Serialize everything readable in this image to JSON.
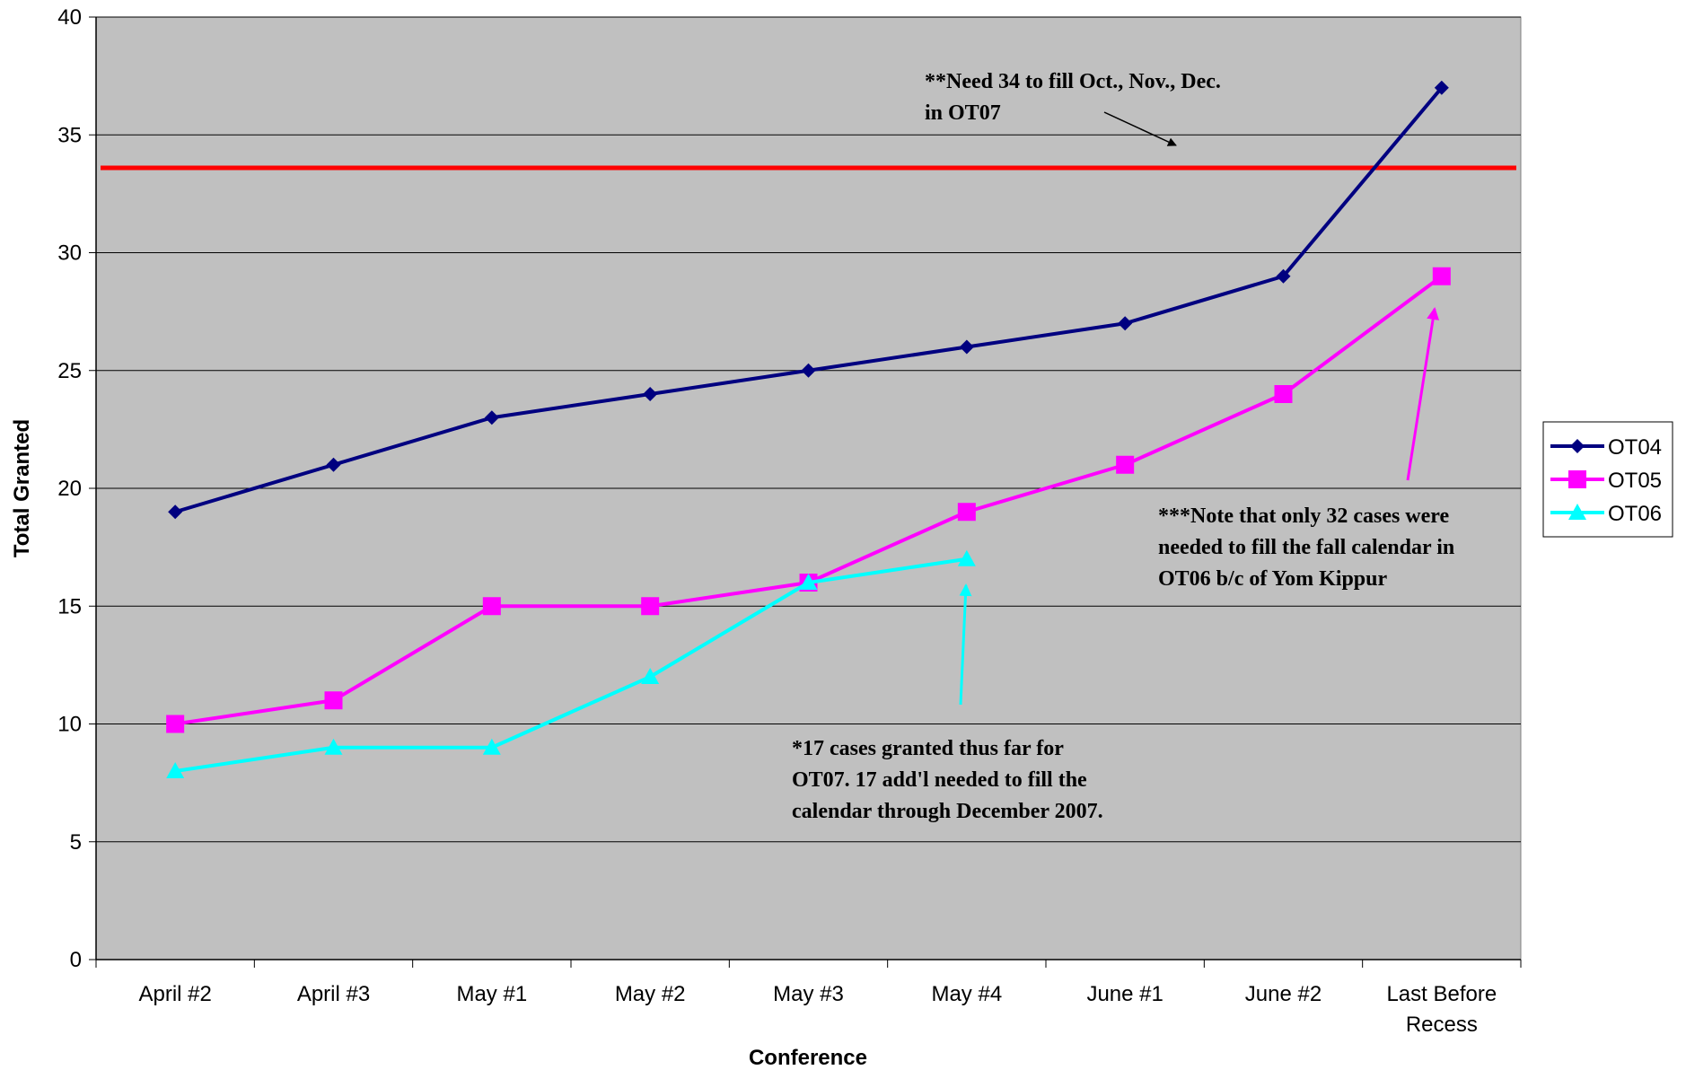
{
  "chart_data": {
    "type": "line",
    "title": "",
    "xlabel": "Conference",
    "ylabel": "Total Granted",
    "categories": [
      [
        "April #2"
      ],
      [
        "April #3"
      ],
      [
        "May #1"
      ],
      [
        "May #2"
      ],
      [
        "May #3"
      ],
      [
        "May #4"
      ],
      [
        "June #1"
      ],
      [
        "June #2"
      ],
      [
        "Last Before",
        "Recess"
      ]
    ],
    "ylim": [
      0,
      40
    ],
    "yticks": [
      0,
      5,
      10,
      15,
      20,
      25,
      30,
      35,
      40
    ],
    "grid": true,
    "plot_background": "#c0c0c0",
    "legend_placement": "right",
    "series": [
      {
        "name": "OT04",
        "color": "#000080",
        "marker": "diamond",
        "values": [
          19,
          21,
          23,
          24,
          25,
          26,
          27,
          29,
          37
        ]
      },
      {
        "name": "OT05",
        "color": "#ff00ff",
        "marker": "square",
        "values": [
          10,
          11,
          15,
          15,
          16,
          19,
          21,
          24,
          29
        ]
      },
      {
        "name": "OT06",
        "color": "#00ffff",
        "marker": "triangle",
        "values": [
          8,
          9,
          9,
          12,
          16,
          17,
          null,
          null,
          null
        ]
      }
    ],
    "reference_line": {
      "value": 33.6,
      "color": "#ff0000"
    },
    "annotations": [
      {
        "lines": [
          "**Need 34 to fill Oct., Nov., Dec.",
          "in OT07"
        ],
        "arrow_color": "#000000"
      },
      {
        "lines": [
          "*17 cases granted thus far for",
          "OT07.  17 add'l needed to fill the",
          "calendar through December 2007."
        ],
        "arrow_color": "#00ffff"
      },
      {
        "lines": [
          "***Note that only 32 cases were",
          "needed to fill the fall calendar in",
          "OT06 b/c of Yom Kippur"
        ],
        "arrow_color": "#ff00ff"
      }
    ]
  }
}
